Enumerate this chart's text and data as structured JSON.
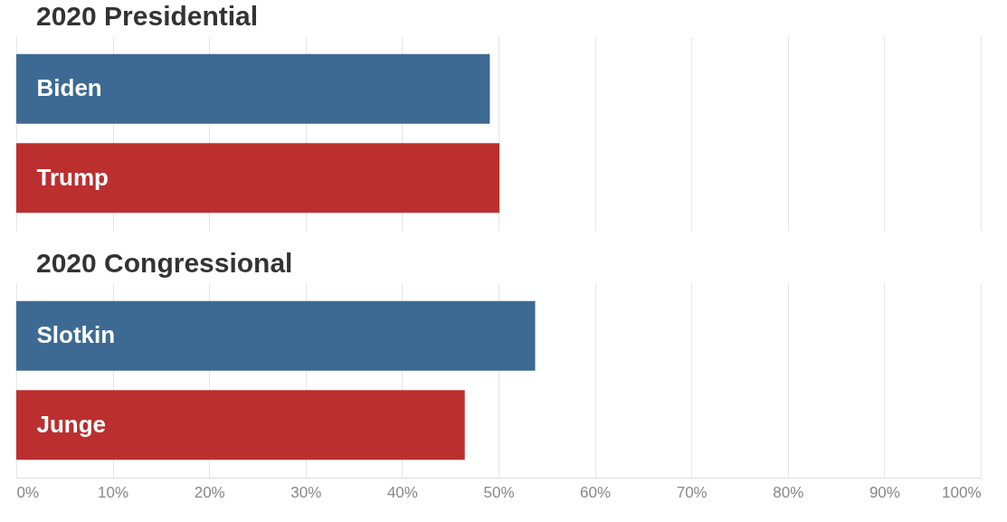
{
  "chart_data": [
    {
      "type": "bar",
      "title": "2020 Presidential",
      "orientation": "horizontal",
      "categories": [
        "Biden",
        "Trump"
      ],
      "values": [
        49.1,
        50.1
      ],
      "colors": [
        "#3d6a92",
        "#bb2f2f"
      ],
      "xlim": [
        0,
        100
      ],
      "xticks": [
        0,
        10,
        20,
        30,
        40,
        50,
        60,
        70,
        80,
        90,
        100
      ],
      "grid": "x",
      "tick_labels": "y"
    },
    {
      "type": "bar",
      "title": "2020 Congressional",
      "orientation": "horizontal",
      "categories": [
        "Slotkin",
        "Junge"
      ],
      "values": [
        53.8,
        46.5
      ],
      "colors": [
        "#3d6a92",
        "#bb2f2f"
      ],
      "xlim": [
        0,
        100
      ],
      "xticks": [
        {
          "value": 0,
          "label": "0%"
        },
        {
          "value": 10,
          "label": "10%"
        },
        {
          "value": 20,
          "label": "20%"
        },
        {
          "value": 30,
          "label": "30%"
        },
        {
          "value": 40,
          "label": "40%"
        },
        {
          "value": 50,
          "label": "50%"
        },
        {
          "value": 60,
          "label": "60%"
        },
        {
          "value": 70,
          "label": "70%"
        },
        {
          "value": 80,
          "label": "80%"
        },
        {
          "value": 90,
          "label": "90%"
        },
        {
          "value": 100,
          "label": "100%"
        }
      ],
      "grid": "x"
    }
  ]
}
